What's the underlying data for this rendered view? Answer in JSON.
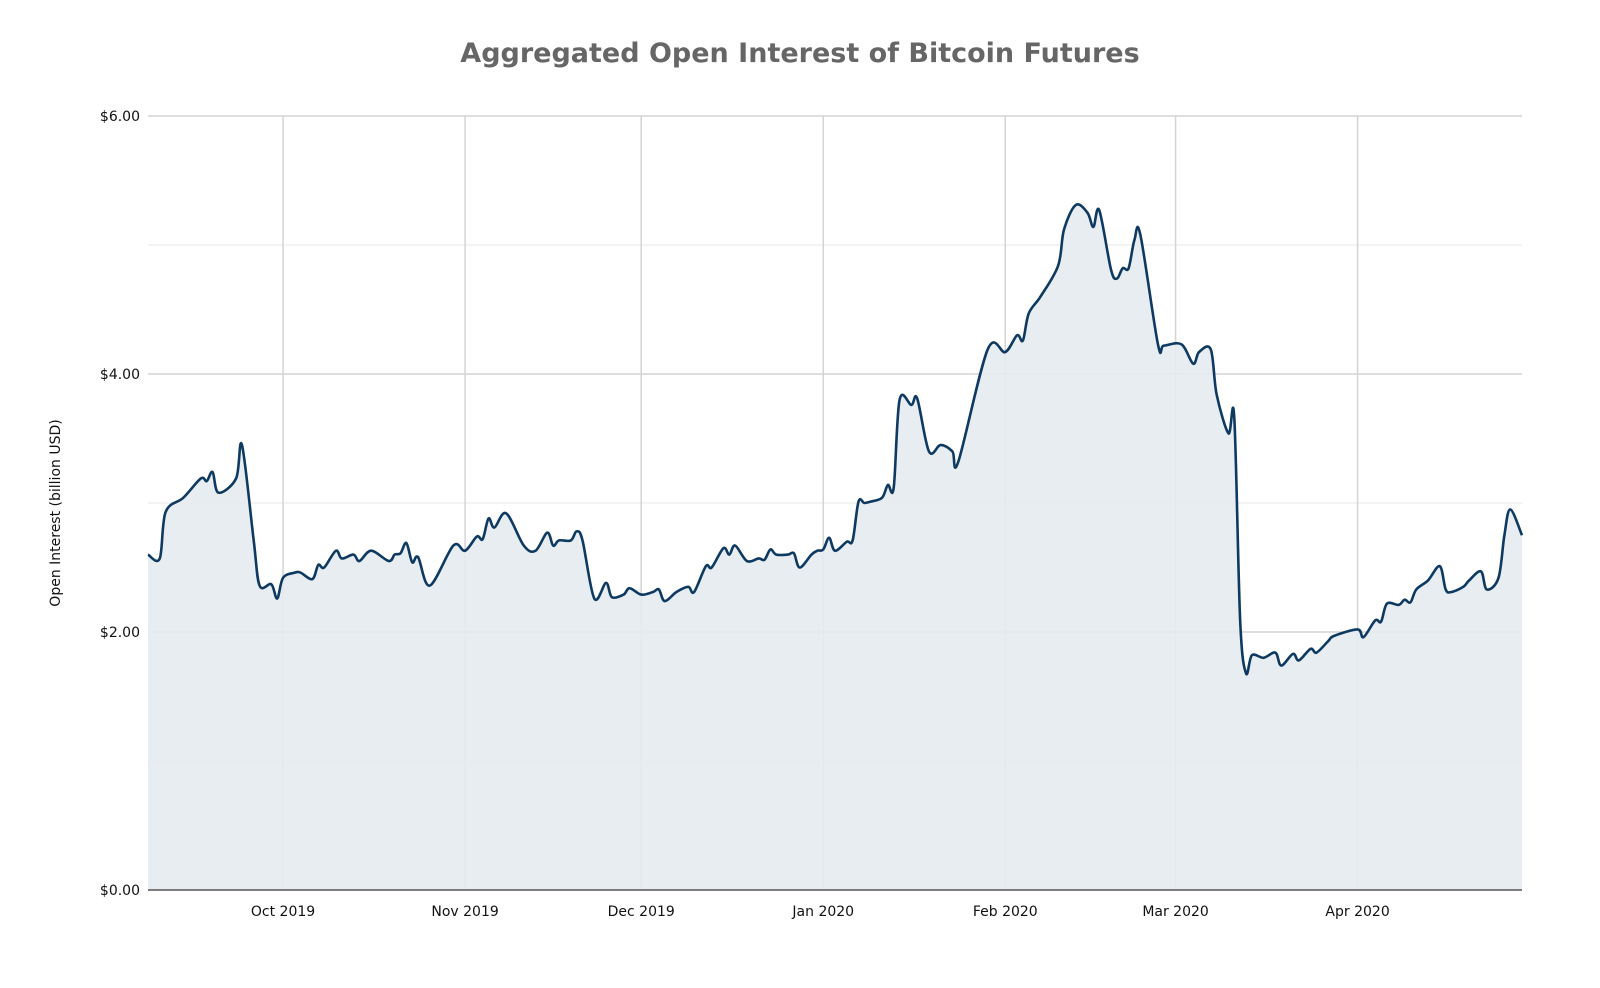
{
  "chart_data": {
    "type": "area",
    "title": "Aggregated Open Interest of Bitcoin Futures",
    "xlabel": "",
    "ylabel": "Open Interest (billion USD)",
    "xlim": [
      "2019-09-08",
      "2020-04-29"
    ],
    "ylim": [
      0,
      6
    ],
    "y_ticks": [
      {
        "value": 0,
        "label": "$0.00"
      },
      {
        "value": 2,
        "label": "$2.00"
      },
      {
        "value": 4,
        "label": "$4.00"
      },
      {
        "value": 6,
        "label": "$6.00"
      }
    ],
    "y_minor_grid": [
      1,
      3,
      5
    ],
    "x_ticks": [
      {
        "date": "2019-10-01",
        "label": "Oct 2019"
      },
      {
        "date": "2019-11-01",
        "label": "Nov 2019"
      },
      {
        "date": "2019-12-01",
        "label": "Dec 2019"
      },
      {
        "date": "2020-01-01",
        "label": "Jan 2020"
      },
      {
        "date": "2020-02-01",
        "label": "Feb 2020"
      },
      {
        "date": "2020-03-01",
        "label": "Mar 2020"
      },
      {
        "date": "2020-04-01",
        "label": "Apr 2020"
      }
    ],
    "grid": true,
    "colors": {
      "line": "#0e3a62",
      "fill": "#e6ebf0",
      "title": "#666666",
      "grid_major": "#d4d4d4",
      "grid_minor": "#efefef",
      "axis": "#555555"
    },
    "points": [
      [
        "2019-09-08",
        2.6
      ],
      [
        "2019-09-10",
        2.57
      ],
      [
        "2019-09-11",
        2.93
      ],
      [
        "2019-09-14",
        3.04
      ],
      [
        "2019-09-17",
        3.19
      ],
      [
        "2019-09-18",
        3.17
      ],
      [
        "2019-09-19",
        3.24
      ],
      [
        "2019-09-20",
        3.08
      ],
      [
        "2019-09-23",
        3.19
      ],
      [
        "2019-09-24",
        3.45
      ],
      [
        "2019-09-26",
        2.71
      ],
      [
        "2019-09-27",
        2.36
      ],
      [
        "2019-09-29",
        2.37
      ],
      [
        "2019-09-30",
        2.26
      ],
      [
        "2019-10-01",
        2.42
      ],
      [
        "2019-10-03",
        2.46
      ],
      [
        "2019-10-04",
        2.46
      ],
      [
        "2019-10-06",
        2.41
      ],
      [
        "2019-10-07",
        2.52
      ],
      [
        "2019-10-08",
        2.5
      ],
      [
        "2019-10-10",
        2.63
      ],
      [
        "2019-10-11",
        2.57
      ],
      [
        "2019-10-13",
        2.6
      ],
      [
        "2019-10-14",
        2.55
      ],
      [
        "2019-10-16",
        2.63
      ],
      [
        "2019-10-19",
        2.55
      ],
      [
        "2019-10-20",
        2.6
      ],
      [
        "2019-10-21",
        2.61
      ],
      [
        "2019-10-22",
        2.69
      ],
      [
        "2019-10-23",
        2.54
      ],
      [
        "2019-10-24",
        2.58
      ],
      [
        "2019-10-26",
        2.36
      ],
      [
        "2019-10-30",
        2.67
      ],
      [
        "2019-11-01",
        2.63
      ],
      [
        "2019-11-03",
        2.74
      ],
      [
        "2019-11-04",
        2.72
      ],
      [
        "2019-11-05",
        2.88
      ],
      [
        "2019-11-06",
        2.81
      ],
      [
        "2019-11-08",
        2.92
      ],
      [
        "2019-11-11",
        2.67
      ],
      [
        "2019-11-13",
        2.63
      ],
      [
        "2019-11-15",
        2.77
      ],
      [
        "2019-11-16",
        2.67
      ],
      [
        "2019-11-17",
        2.71
      ],
      [
        "2019-11-19",
        2.71
      ],
      [
        "2019-11-20",
        2.78
      ],
      [
        "2019-11-21",
        2.71
      ],
      [
        "2019-11-23",
        2.26
      ],
      [
        "2019-11-25",
        2.38
      ],
      [
        "2019-11-26",
        2.27
      ],
      [
        "2019-11-28",
        2.29
      ],
      [
        "2019-11-29",
        2.34
      ],
      [
        "2019-12-01",
        2.29
      ],
      [
        "2019-12-03",
        2.31
      ],
      [
        "2019-12-04",
        2.33
      ],
      [
        "2019-12-05",
        2.24
      ],
      [
        "2019-12-07",
        2.31
      ],
      [
        "2019-12-09",
        2.35
      ],
      [
        "2019-12-10",
        2.31
      ],
      [
        "2019-12-12",
        2.51
      ],
      [
        "2019-12-13",
        2.5
      ],
      [
        "2019-12-15",
        2.65
      ],
      [
        "2019-12-16",
        2.6
      ],
      [
        "2019-12-17",
        2.67
      ],
      [
        "2019-12-19",
        2.55
      ],
      [
        "2019-12-21",
        2.57
      ],
      [
        "2019-12-22",
        2.56
      ],
      [
        "2019-12-23",
        2.64
      ],
      [
        "2019-12-24",
        2.6
      ],
      [
        "2019-12-26",
        2.6
      ],
      [
        "2019-12-27",
        2.61
      ],
      [
        "2019-12-28",
        2.5
      ],
      [
        "2019-12-30",
        2.6
      ],
      [
        "2019-12-31",
        2.63
      ],
      [
        "2020-01-01",
        2.64
      ],
      [
        "2020-01-02",
        2.73
      ],
      [
        "2020-01-03",
        2.63
      ],
      [
        "2020-01-05",
        2.7
      ],
      [
        "2020-01-06",
        2.71
      ],
      [
        "2020-01-07",
        3.01
      ],
      [
        "2020-01-08",
        3.0
      ],
      [
        "2020-01-09",
        3.01
      ],
      [
        "2020-01-11",
        3.04
      ],
      [
        "2020-01-12",
        3.14
      ],
      [
        "2020-01-13",
        3.12
      ],
      [
        "2020-01-14",
        3.8
      ],
      [
        "2020-01-16",
        3.76
      ],
      [
        "2020-01-17",
        3.81
      ],
      [
        "2020-01-19",
        3.4
      ],
      [
        "2020-01-21",
        3.45
      ],
      [
        "2020-01-23",
        3.4
      ],
      [
        "2020-01-24",
        3.32
      ],
      [
        "2020-01-29",
        4.19
      ],
      [
        "2020-02-01",
        4.17
      ],
      [
        "2020-02-03",
        4.3
      ],
      [
        "2020-02-04",
        4.26
      ],
      [
        "2020-02-05",
        4.47
      ],
      [
        "2020-02-07",
        4.6
      ],
      [
        "2020-02-10",
        4.84
      ],
      [
        "2020-02-11",
        5.12
      ],
      [
        "2020-02-13",
        5.31
      ],
      [
        "2020-02-15",
        5.25
      ],
      [
        "2020-02-16",
        5.14
      ],
      [
        "2020-02-17",
        5.27
      ],
      [
        "2020-02-19",
        4.81
      ],
      [
        "2020-02-20",
        4.74
      ],
      [
        "2020-02-21",
        4.82
      ],
      [
        "2020-02-22",
        4.82
      ],
      [
        "2020-02-23",
        5.04
      ],
      [
        "2020-02-24",
        5.08
      ],
      [
        "2020-02-27",
        4.23
      ],
      [
        "2020-02-28",
        4.22
      ],
      [
        "2020-03-02",
        4.23
      ],
      [
        "2020-03-04",
        4.08
      ],
      [
        "2020-03-05",
        4.17
      ],
      [
        "2020-03-07",
        4.19
      ],
      [
        "2020-03-08",
        3.84
      ],
      [
        "2020-03-10",
        3.54
      ],
      [
        "2020-03-11",
        3.66
      ],
      [
        "2020-03-12",
        2.09
      ],
      [
        "2020-03-13",
        1.68
      ],
      [
        "2020-03-14",
        1.82
      ],
      [
        "2020-03-16",
        1.8
      ],
      [
        "2020-03-18",
        1.84
      ],
      [
        "2020-03-19",
        1.74
      ],
      [
        "2020-03-21",
        1.83
      ],
      [
        "2020-03-22",
        1.78
      ],
      [
        "2020-03-24",
        1.87
      ],
      [
        "2020-03-25",
        1.84
      ],
      [
        "2020-03-27",
        1.93
      ],
      [
        "2020-03-28",
        1.97
      ],
      [
        "2020-04-01",
        2.02
      ],
      [
        "2020-04-02",
        1.96
      ],
      [
        "2020-04-04",
        2.09
      ],
      [
        "2020-04-05",
        2.08
      ],
      [
        "2020-04-06",
        2.22
      ],
      [
        "2020-04-08",
        2.21
      ],
      [
        "2020-04-09",
        2.25
      ],
      [
        "2020-04-10",
        2.23
      ],
      [
        "2020-04-11",
        2.33
      ],
      [
        "2020-04-13",
        2.4
      ],
      [
        "2020-04-15",
        2.51
      ],
      [
        "2020-04-16",
        2.33
      ],
      [
        "2020-04-17",
        2.31
      ],
      [
        "2020-04-19",
        2.35
      ],
      [
        "2020-04-20",
        2.4
      ],
      [
        "2020-04-22",
        2.47
      ],
      [
        "2020-04-23",
        2.33
      ],
      [
        "2020-04-25",
        2.42
      ],
      [
        "2020-04-26",
        2.75
      ],
      [
        "2020-04-27",
        2.95
      ],
      [
        "2020-04-29",
        2.75
      ]
    ]
  }
}
